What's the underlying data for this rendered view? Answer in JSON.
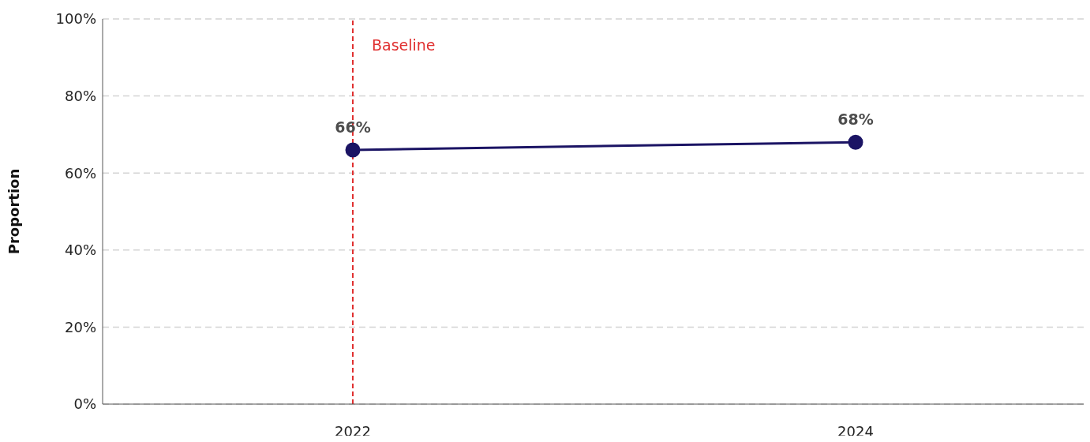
{
  "chart_data": {
    "type": "line",
    "ylabel": "Proportion",
    "categories": [
      "2022",
      "2024"
    ],
    "series": [
      {
        "color": "#1b1464",
        "values": [
          66,
          68
        ]
      }
    ],
    "ylim": [
      0,
      100
    ],
    "yticks": [
      {
        "value": 0,
        "label": "0%"
      },
      {
        "value": 20,
        "label": "20%"
      },
      {
        "value": 40,
        "label": "40%"
      },
      {
        "value": 60,
        "label": "60%"
      },
      {
        "value": 80,
        "label": "80%"
      },
      {
        "value": 100,
        "label": "100%"
      }
    ],
    "value_labels": [
      "66%",
      "68%"
    ],
    "ref_lines": [
      {
        "axis": "x",
        "value": "2022",
        "label": "Baseline",
        "color": "#e03030",
        "line_style": "dashed"
      }
    ],
    "grid": "y",
    "marker": "circle",
    "line_style": "solid",
    "legend": false
  }
}
